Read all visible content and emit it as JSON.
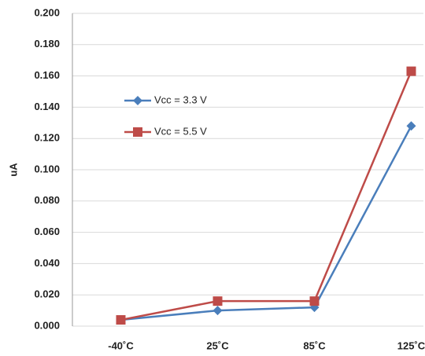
{
  "chart_data": {
    "type": "line",
    "y_label": "uA",
    "categories": [
      "-40˚C",
      "25˚C",
      "85˚C",
      "125˚C"
    ],
    "series": [
      {
        "name": "Vcc = 3.3 V",
        "color": "#4a7ebb",
        "marker": "diamond",
        "values": [
          0.004,
          0.01,
          0.012,
          0.128
        ]
      },
      {
        "name": "Vcc = 5.5 V",
        "color": "#be4b48",
        "marker": "square",
        "values": [
          0.004,
          0.016,
          0.016,
          0.163
        ]
      }
    ],
    "ylim": [
      0,
      0.2
    ],
    "yticks": [
      {
        "value": 0,
        "label": "0.000"
      },
      {
        "value": 0.02,
        "label": "0.020"
      },
      {
        "value": 0.04,
        "label": "0.040"
      },
      {
        "value": 0.06,
        "label": "0.060"
      },
      {
        "value": 0.08,
        "label": "0.080"
      },
      {
        "value": 0.1,
        "label": "0.100"
      },
      {
        "value": 0.12,
        "label": "0.120"
      },
      {
        "value": 0.14,
        "label": "0.140"
      },
      {
        "value": 0.16,
        "label": "0.160"
      },
      {
        "value": 0.18,
        "label": "0.180"
      },
      {
        "value": 0.2,
        "label": "0.200"
      }
    ],
    "grid": true,
    "legend": "left"
  }
}
